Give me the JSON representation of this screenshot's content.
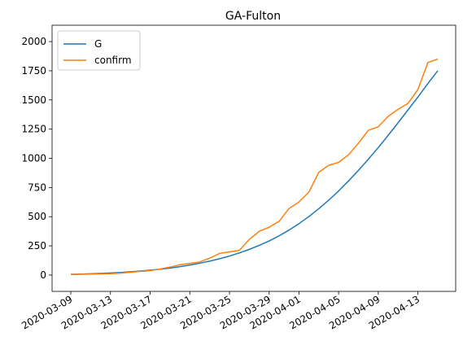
{
  "chart_data": {
    "type": "line",
    "title": "GA-Fulton",
    "xlabel": "",
    "ylabel": "",
    "x_tick_labels": [
      "2020-03-09",
      "2020-03-13",
      "2020-03-17",
      "2020-03-21",
      "2020-03-25",
      "2020-03-29",
      "2020-04-01",
      "2020-04-05",
      "2020-04-09",
      "2020-04-13"
    ],
    "y_tick_labels": [
      "0",
      "250",
      "500",
      "750",
      "1000",
      "1250",
      "1500",
      "1750",
      "2000"
    ],
    "ylim": [
      -140,
      2140
    ],
    "legend_position": "upper-left",
    "grid": false,
    "series": [
      {
        "name": "G",
        "color": "#1f77b4",
        "x": [
          "2020-03-09",
          "2020-03-10",
          "2020-03-11",
          "2020-03-12",
          "2020-03-13",
          "2020-03-14",
          "2020-03-15",
          "2020-03-16",
          "2020-03-17",
          "2020-03-18",
          "2020-03-19",
          "2020-03-20",
          "2020-03-21",
          "2020-03-22",
          "2020-03-23",
          "2020-03-24",
          "2020-03-25",
          "2020-03-26",
          "2020-03-27",
          "2020-03-28",
          "2020-03-29",
          "2020-03-30",
          "2020-03-31",
          "2020-04-01",
          "2020-04-02",
          "2020-04-03",
          "2020-04-04",
          "2020-04-05",
          "2020-04-06",
          "2020-04-07",
          "2020-04-08",
          "2020-04-09",
          "2020-04-10",
          "2020-04-11",
          "2020-04-12",
          "2020-04-13",
          "2020-04-14",
          "2020-04-15"
        ],
        "values": [
          6,
          8,
          11,
          14,
          18,
          22,
          28,
          34,
          42,
          50,
          60,
          72,
          86,
          101,
          119,
          140,
          163,
          190,
          220,
          254,
          292,
          336,
          385,
          440,
          501,
          568,
          641,
          720,
          806,
          896,
          992,
          1092,
          1197,
          1305,
          1415,
          1525,
          1640,
          1750
        ]
      },
      {
        "name": "confirm",
        "color": "#ff7f0e",
        "x": [
          "2020-03-09",
          "2020-03-10",
          "2020-03-11",
          "2020-03-12",
          "2020-03-13",
          "2020-03-14",
          "2020-03-15",
          "2020-03-16",
          "2020-03-17",
          "2020-03-18",
          "2020-03-19",
          "2020-03-20",
          "2020-03-21",
          "2020-03-22",
          "2020-03-23",
          "2020-03-24",
          "2020-03-25",
          "2020-03-26",
          "2020-03-27",
          "2020-03-28",
          "2020-03-29",
          "2020-03-30",
          "2020-03-31",
          "2020-04-01",
          "2020-04-02",
          "2020-04-03",
          "2020-04-04",
          "2020-04-05",
          "2020-04-06",
          "2020-04-07",
          "2020-04-08",
          "2020-04-09",
          "2020-04-10",
          "2020-04-11",
          "2020-04-12",
          "2020-04-13",
          "2020-04-14",
          "2020-04-15"
        ],
        "values": [
          5,
          6,
          8,
          10,
          12,
          16,
          24,
          32,
          38,
          52,
          68,
          88,
          100,
          112,
          145,
          185,
          198,
          212,
          305,
          375,
          410,
          460,
          570,
          625,
          710,
          880,
          940,
          965,
          1030,
          1130,
          1240,
          1270,
          1360,
          1420,
          1470,
          1590,
          1820,
          1850
        ]
      }
    ]
  }
}
